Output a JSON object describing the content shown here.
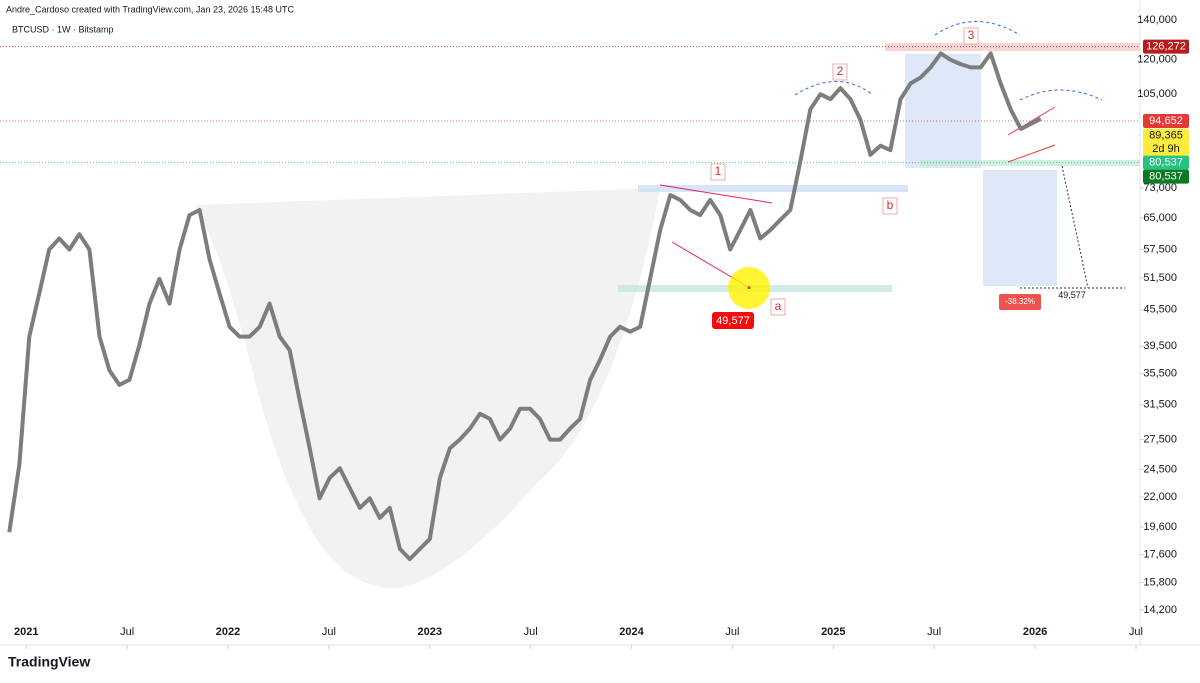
{
  "header": {
    "credit": "Andre_Cardoso created with TradingView.com, Jan 23, 2026 15:48 UTC",
    "logo": "TradingView"
  },
  "chart_data": {
    "type": "line",
    "title": "BTCUSD · 1W · Bitstamp",
    "log_scale": true,
    "grid": false,
    "color": "#7d7d7d",
    "x": [
      2020.916,
      2020.966,
      2021.015,
      2021.065,
      2021.114,
      2021.164,
      2021.214,
      2021.263,
      2021.313,
      2021.363,
      2021.412,
      2021.462,
      2021.512,
      2021.561,
      2021.611,
      2021.66,
      2021.71,
      2021.76,
      2021.809,
      2021.859,
      2021.909,
      2021.958,
      2022.008,
      2022.057,
      2022.107,
      2022.157,
      2022.206,
      2022.256,
      2022.306,
      2022.355,
      2022.405,
      2022.454,
      2022.504,
      2022.554,
      2022.603,
      2022.653,
      2022.703,
      2022.752,
      2022.802,
      2022.852,
      2022.901,
      2022.951,
      2023.0,
      2023.05,
      2023.1,
      2023.149,
      2023.199,
      2023.249,
      2023.298,
      2023.348,
      2023.398,
      2023.447,
      2023.497,
      2023.546,
      2023.596,
      2023.646,
      2023.695,
      2023.745,
      2023.795,
      2023.844,
      2023.894,
      2023.943,
      2023.993,
      2024.043,
      2024.092,
      2024.142,
      2024.192,
      2024.241,
      2024.291,
      2024.34,
      2024.39,
      2024.44,
      2024.489,
      2024.539,
      2024.589,
      2024.638,
      2024.688,
      2024.738,
      2024.787,
      2024.837,
      2024.886,
      2024.936,
      2024.986,
      2025.035,
      2025.085,
      2025.135,
      2025.184,
      2025.234,
      2025.283,
      2025.333,
      2025.383,
      2025.432,
      2025.482,
      2025.532,
      2025.581,
      2025.631,
      2025.681,
      2025.73,
      2025.78,
      2025.829,
      2025.879,
      2025.929,
      2025.978,
      2026.028
    ],
    "values": [
      19200,
      25000,
      41000,
      48500,
      57500,
      60000,
      57500,
      61000,
      57500,
      41000,
      36000,
      34000,
      34700,
      39700,
      46600,
      51300,
      46600,
      57500,
      65700,
      67000,
      55300,
      48500,
      42600,
      41000,
      41000,
      42600,
      46600,
      41000,
      38900,
      32100,
      26600,
      21900,
      23700,
      24600,
      22800,
      21100,
      21900,
      20300,
      21100,
      18000,
      17300,
      18000,
      18700,
      23700,
      26600,
      27500,
      28700,
      30400,
      29800,
      27500,
      28700,
      31000,
      31000,
      29800,
      27500,
      27500,
      28700,
      29800,
      34700,
      37500,
      41000,
      42600,
      41800,
      42600,
      51300,
      62000,
      71000,
      69700,
      67000,
      65700,
      69700,
      65700,
      57500,
      62000,
      67000,
      60000,
      62000,
      64500,
      67000,
      81000,
      99000,
      105000,
      103000,
      107500,
      103000,
      95000,
      83000,
      86000,
      84500,
      103000,
      109500,
      112000,
      116500,
      123000,
      120000,
      118000,
      116500,
      116500,
      123000,
      109500,
      99000,
      91800,
      93500,
      95500
    ],
    "xlim": [
      2020.87,
      2026.52
    ],
    "xticks": [
      2021,
      {
        "value": 2021.5,
        "label": "Jul"
      },
      2022,
      {
        "value": 2022.5,
        "label": "Jul"
      },
      2023,
      {
        "value": 2023.5,
        "label": "Jul"
      },
      2024,
      {
        "value": 2024.5,
        "label": "Jul"
      },
      2025,
      {
        "value": 2025.5,
        "label": "Jul"
      },
      2026,
      {
        "value": 2026.5,
        "label": "Jul"
      }
    ],
    "ylim": [
      12640,
      146700
    ],
    "yticks": [
      {
        "value": 14200,
        "label": "14,200"
      },
      {
        "value": 15800,
        "label": "15,800"
      },
      {
        "value": 17600,
        "label": "17,600"
      },
      {
        "value": 19600,
        "label": "19,600"
      },
      {
        "value": 22000,
        "label": "22,000"
      },
      {
        "value": 24500,
        "label": "24,500"
      },
      {
        "value": 27500,
        "label": "27,500"
      },
      {
        "value": 31500,
        "label": "31,500"
      },
      {
        "value": 35500,
        "label": "35,500"
      },
      {
        "value": 39500,
        "label": "39,500"
      },
      {
        "value": 45500,
        "label": "45,500"
      },
      {
        "value": 51500,
        "label": "51,500"
      },
      {
        "value": 57500,
        "label": "57,500"
      },
      {
        "value": 65000,
        "label": "65,000"
      },
      {
        "value": 73000,
        "label": "73,000"
      },
      {
        "value": 105000,
        "label": "105,000"
      },
      {
        "value": 120000,
        "label": "120,000"
      },
      {
        "value": 140000,
        "label": "140,000"
      }
    ],
    "price_labels": [
      {
        "value": 126272,
        "label": "126,272",
        "color": "#b71c1c"
      },
      {
        "value": 94652,
        "label": "94,652",
        "color": "#e53935"
      },
      {
        "value": 89365,
        "label": "89,365",
        "color": "#ffeb3b",
        "countdown": "2d 9h"
      },
      {
        "value": 80537,
        "label": "80,537",
        "color": "#26c281"
      },
      {
        "value": 80537,
        "label": "80,537",
        "color": "#0b7a24"
      }
    ],
    "annotations": [
      "1",
      "2",
      "3",
      "a",
      "b"
    ],
    "markers": [
      {
        "value": 49577,
        "label": "49,577"
      },
      {
        "value": 49577,
        "label": "49,577"
      }
    ],
    "measure": {
      "value": -38.32,
      "label": "-38.32%"
    }
  }
}
